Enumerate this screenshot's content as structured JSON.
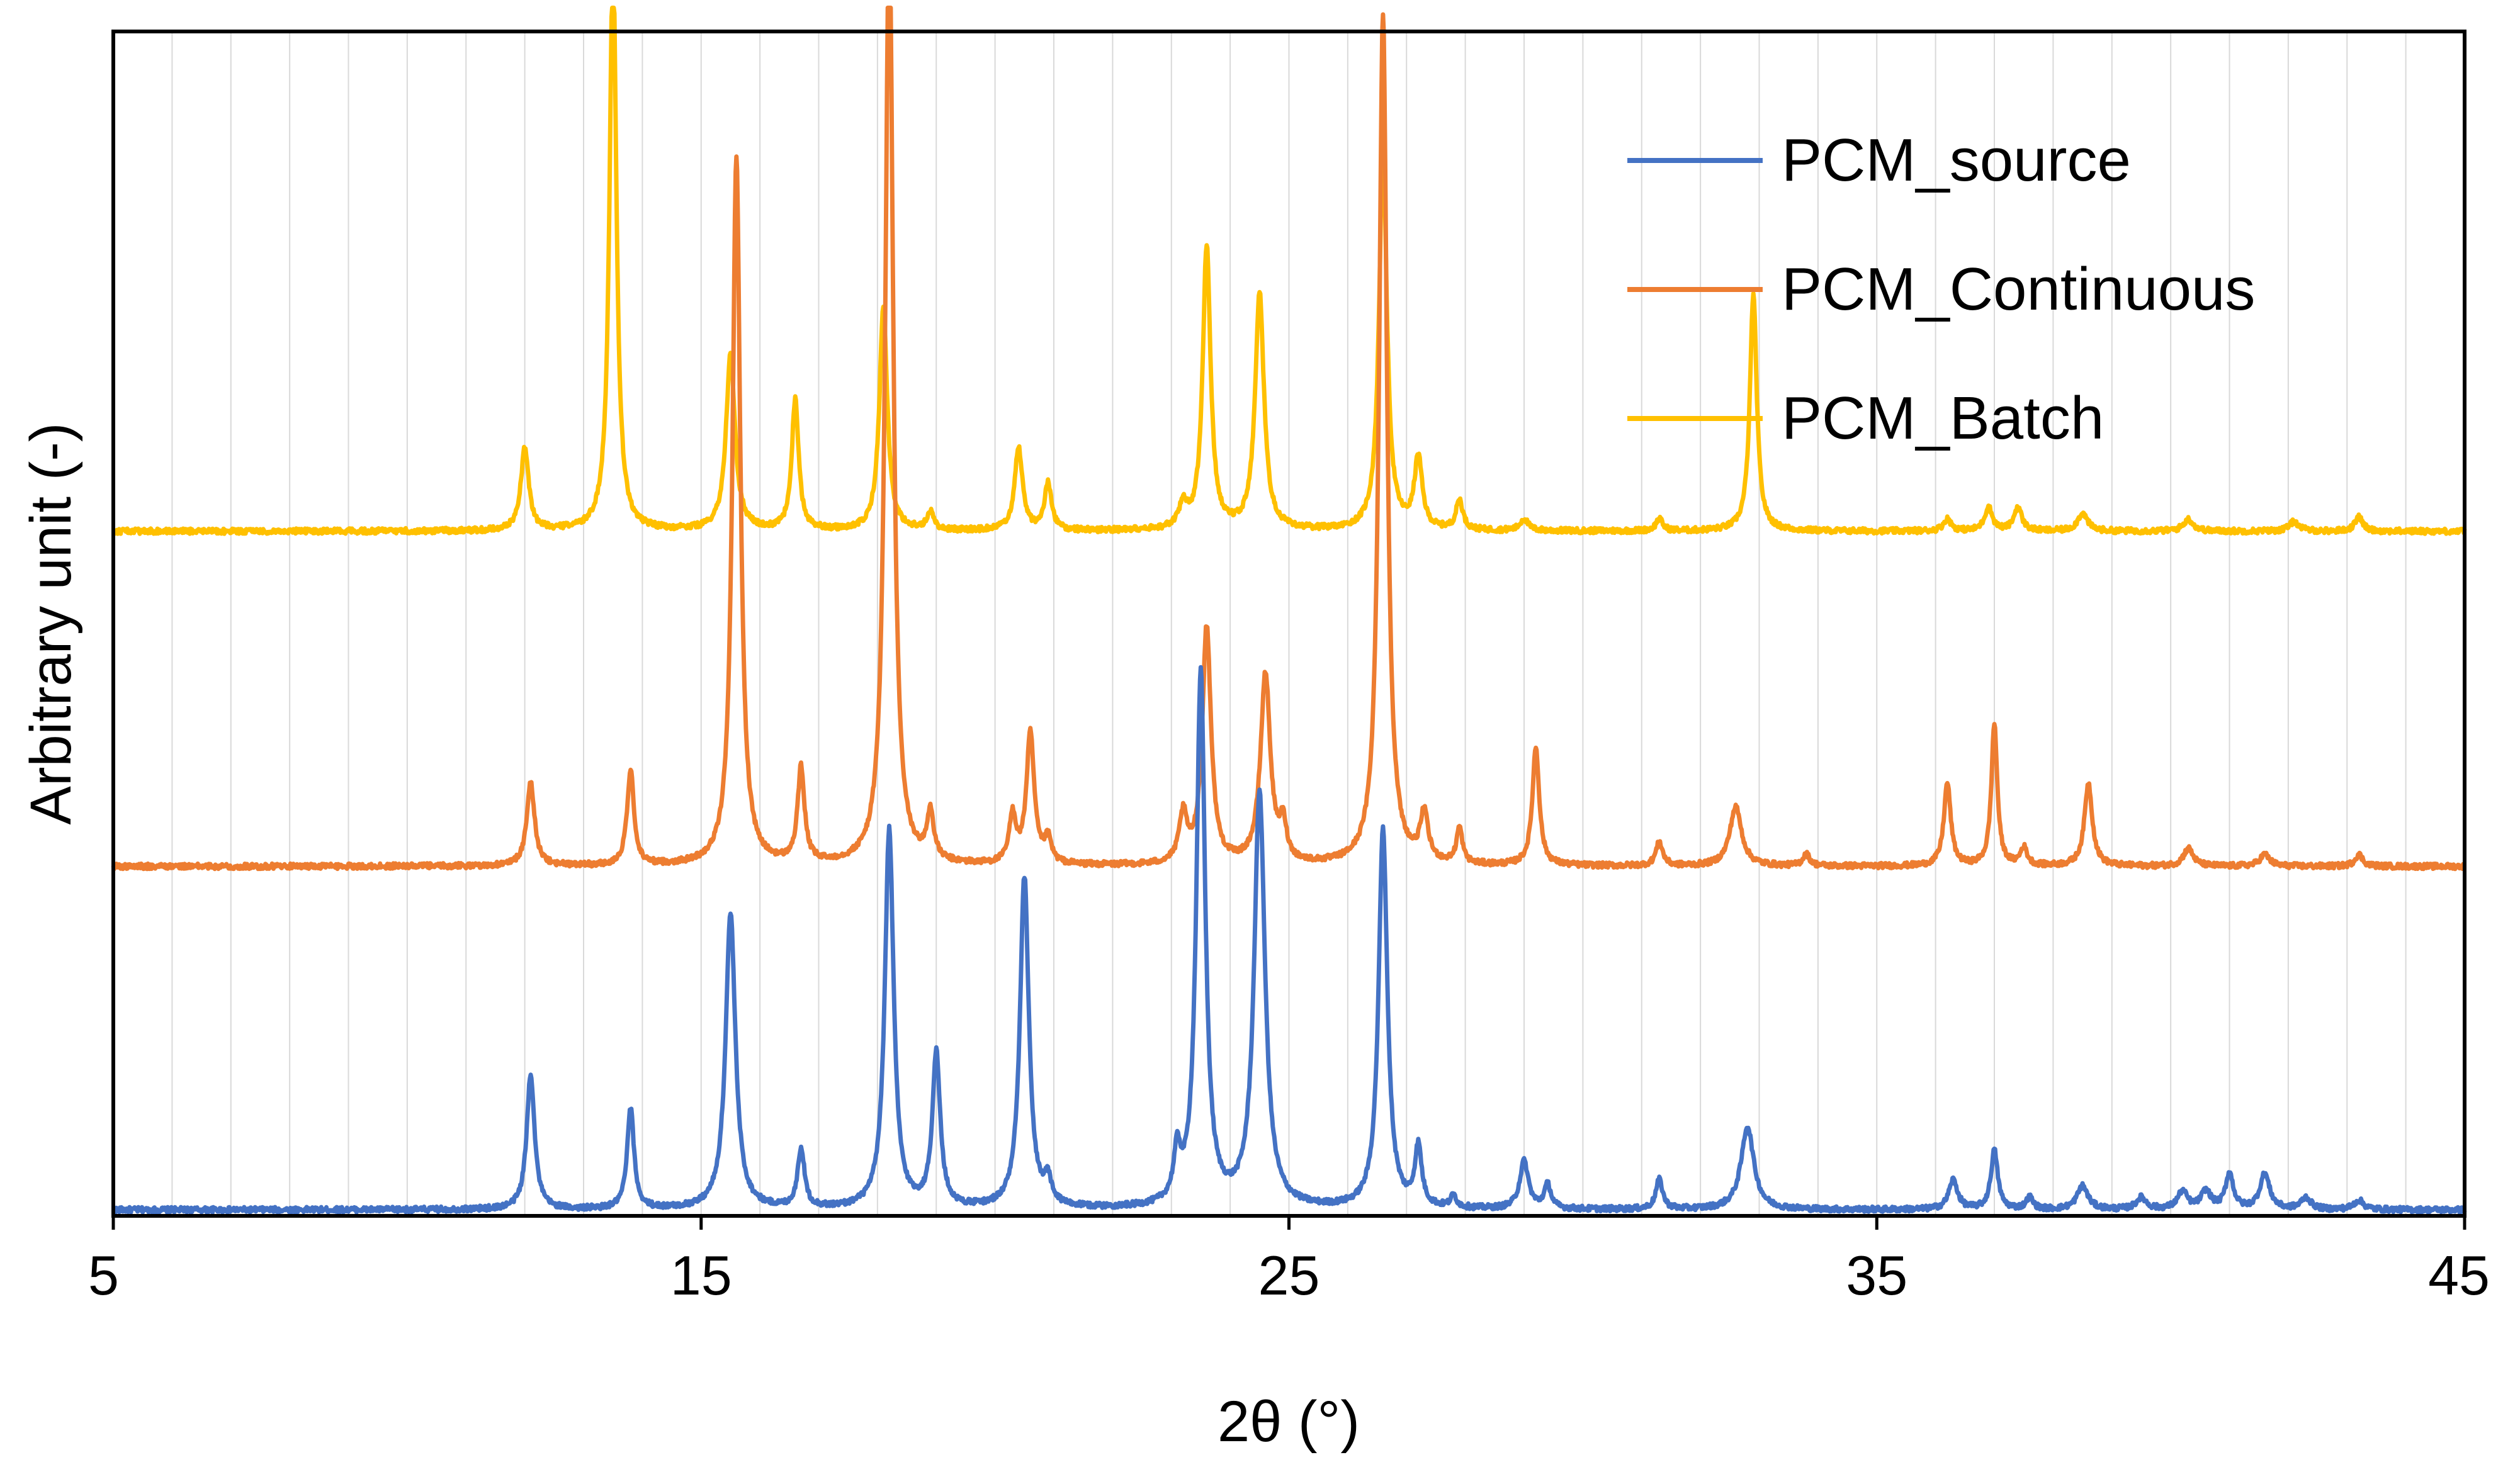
{
  "chart_data": {
    "type": "line",
    "title": "",
    "xlabel": "2θ (°)",
    "ylabel": "Arbitrary unit (-)",
    "xlim": [
      5,
      45
    ],
    "ylim": [
      0,
      100
    ],
    "x_ticks": [
      5,
      15,
      25,
      35,
      45
    ],
    "x_tick_labels": [
      "5",
      "15",
      "25",
      "35",
      "45"
    ],
    "y_tick_labels": [],
    "grid": {
      "vertical_minor": true,
      "horizontal": false
    },
    "legend": {
      "position": "top-right"
    },
    "series": [
      {
        "name": "PCM_source",
        "color": "#4472C4",
        "baseline": 0.5,
        "peaks": [
          [
            12.1,
            11.5,
            0.08
          ],
          [
            13.8,
            8.5,
            0.07
          ],
          [
            15.5,
            25,
            0.1
          ],
          [
            16.7,
            5,
            0.07
          ],
          [
            18.2,
            32,
            0.09
          ],
          [
            19.0,
            13,
            0.08
          ],
          [
            20.5,
            28,
            0.09
          ],
          [
            20.9,
            2,
            0.07
          ],
          [
            23.1,
            4,
            0.07
          ],
          [
            23.5,
            45,
            0.09
          ],
          [
            24.5,
            35,
            0.11
          ],
          [
            26.6,
            32,
            0.09
          ],
          [
            27.2,
            5,
            0.07
          ],
          [
            27.8,
            1,
            0.06
          ],
          [
            29.0,
            4,
            0.09
          ],
          [
            29.4,
            2,
            0.07
          ],
          [
            31.3,
            2.5,
            0.07
          ],
          [
            32.8,
            7,
            0.13
          ],
          [
            36.3,
            2.5,
            0.09
          ],
          [
            37.0,
            5,
            0.07
          ],
          [
            37.6,
            1,
            0.07
          ],
          [
            38.5,
            2,
            0.11
          ],
          [
            39.5,
            1,
            0.1
          ],
          [
            40.2,
            1.5,
            0.1
          ],
          [
            40.6,
            1.5,
            0.1
          ],
          [
            41.0,
            3,
            0.08
          ],
          [
            41.6,
            3,
            0.1
          ],
          [
            42.3,
            1,
            0.1
          ],
          [
            43.2,
            0.8,
            0.1
          ]
        ]
      },
      {
        "name": "PCM_Continuous",
        "color": "#ED7D31",
        "baseline": 29.5,
        "peaks": [
          [
            12.1,
            7,
            0.08
          ],
          [
            13.8,
            8,
            0.07
          ],
          [
            15.6,
            60,
            0.08
          ],
          [
            16.7,
            8,
            0.07
          ],
          [
            18.2,
            80,
            0.08
          ],
          [
            18.9,
            4,
            0.07
          ],
          [
            20.3,
            4,
            0.07
          ],
          [
            20.6,
            11,
            0.08
          ],
          [
            20.9,
            2,
            0.07
          ],
          [
            23.2,
            4,
            0.08
          ],
          [
            23.6,
            20,
            0.09
          ],
          [
            24.6,
            16,
            0.1
          ],
          [
            24.9,
            3,
            0.07
          ],
          [
            26.6,
            72,
            0.08
          ],
          [
            27.3,
            4,
            0.08
          ],
          [
            27.9,
            3,
            0.06
          ],
          [
            29.2,
            10,
            0.07
          ],
          [
            31.3,
            2,
            0.07
          ],
          [
            32.6,
            5,
            0.12
          ],
          [
            33.8,
            1,
            0.07
          ],
          [
            36.2,
            7,
            0.07
          ],
          [
            37.0,
            12,
            0.06
          ],
          [
            37.5,
            1.5,
            0.07
          ],
          [
            38.6,
            7,
            0.08
          ],
          [
            40.3,
            1.5,
            0.1
          ],
          [
            41.6,
            1,
            0.1
          ],
          [
            43.2,
            1,
            0.08
          ]
        ]
      },
      {
        "name": "PCM_Batch",
        "color": "#FFC000",
        "baseline": 57.8,
        "peaks": [
          [
            12.0,
            7,
            0.08
          ],
          [
            13.5,
            49,
            0.07
          ],
          [
            15.5,
            15,
            0.09
          ],
          [
            16.6,
            11,
            0.07
          ],
          [
            18.1,
            19,
            0.08
          ],
          [
            18.9,
            1.5,
            0.07
          ],
          [
            20.4,
            7,
            0.08
          ],
          [
            20.9,
            4,
            0.07
          ],
          [
            23.2,
            2,
            0.08
          ],
          [
            23.6,
            24,
            0.08
          ],
          [
            24.5,
            20,
            0.09
          ],
          [
            26.6,
            32,
            0.08
          ],
          [
            27.2,
            6,
            0.08
          ],
          [
            27.9,
            2.5,
            0.07
          ],
          [
            29.0,
            1,
            0.08
          ],
          [
            31.3,
            1,
            0.07
          ],
          [
            32.9,
            20,
            0.07
          ],
          [
            36.2,
            1,
            0.08
          ],
          [
            36.9,
            2,
            0.08
          ],
          [
            37.4,
            2,
            0.08
          ],
          [
            38.5,
            1.5,
            0.1
          ],
          [
            40.3,
            1,
            0.1
          ],
          [
            42.1,
            0.8,
            0.1
          ],
          [
            43.2,
            1.2,
            0.08
          ]
        ]
      }
    ]
  }
}
